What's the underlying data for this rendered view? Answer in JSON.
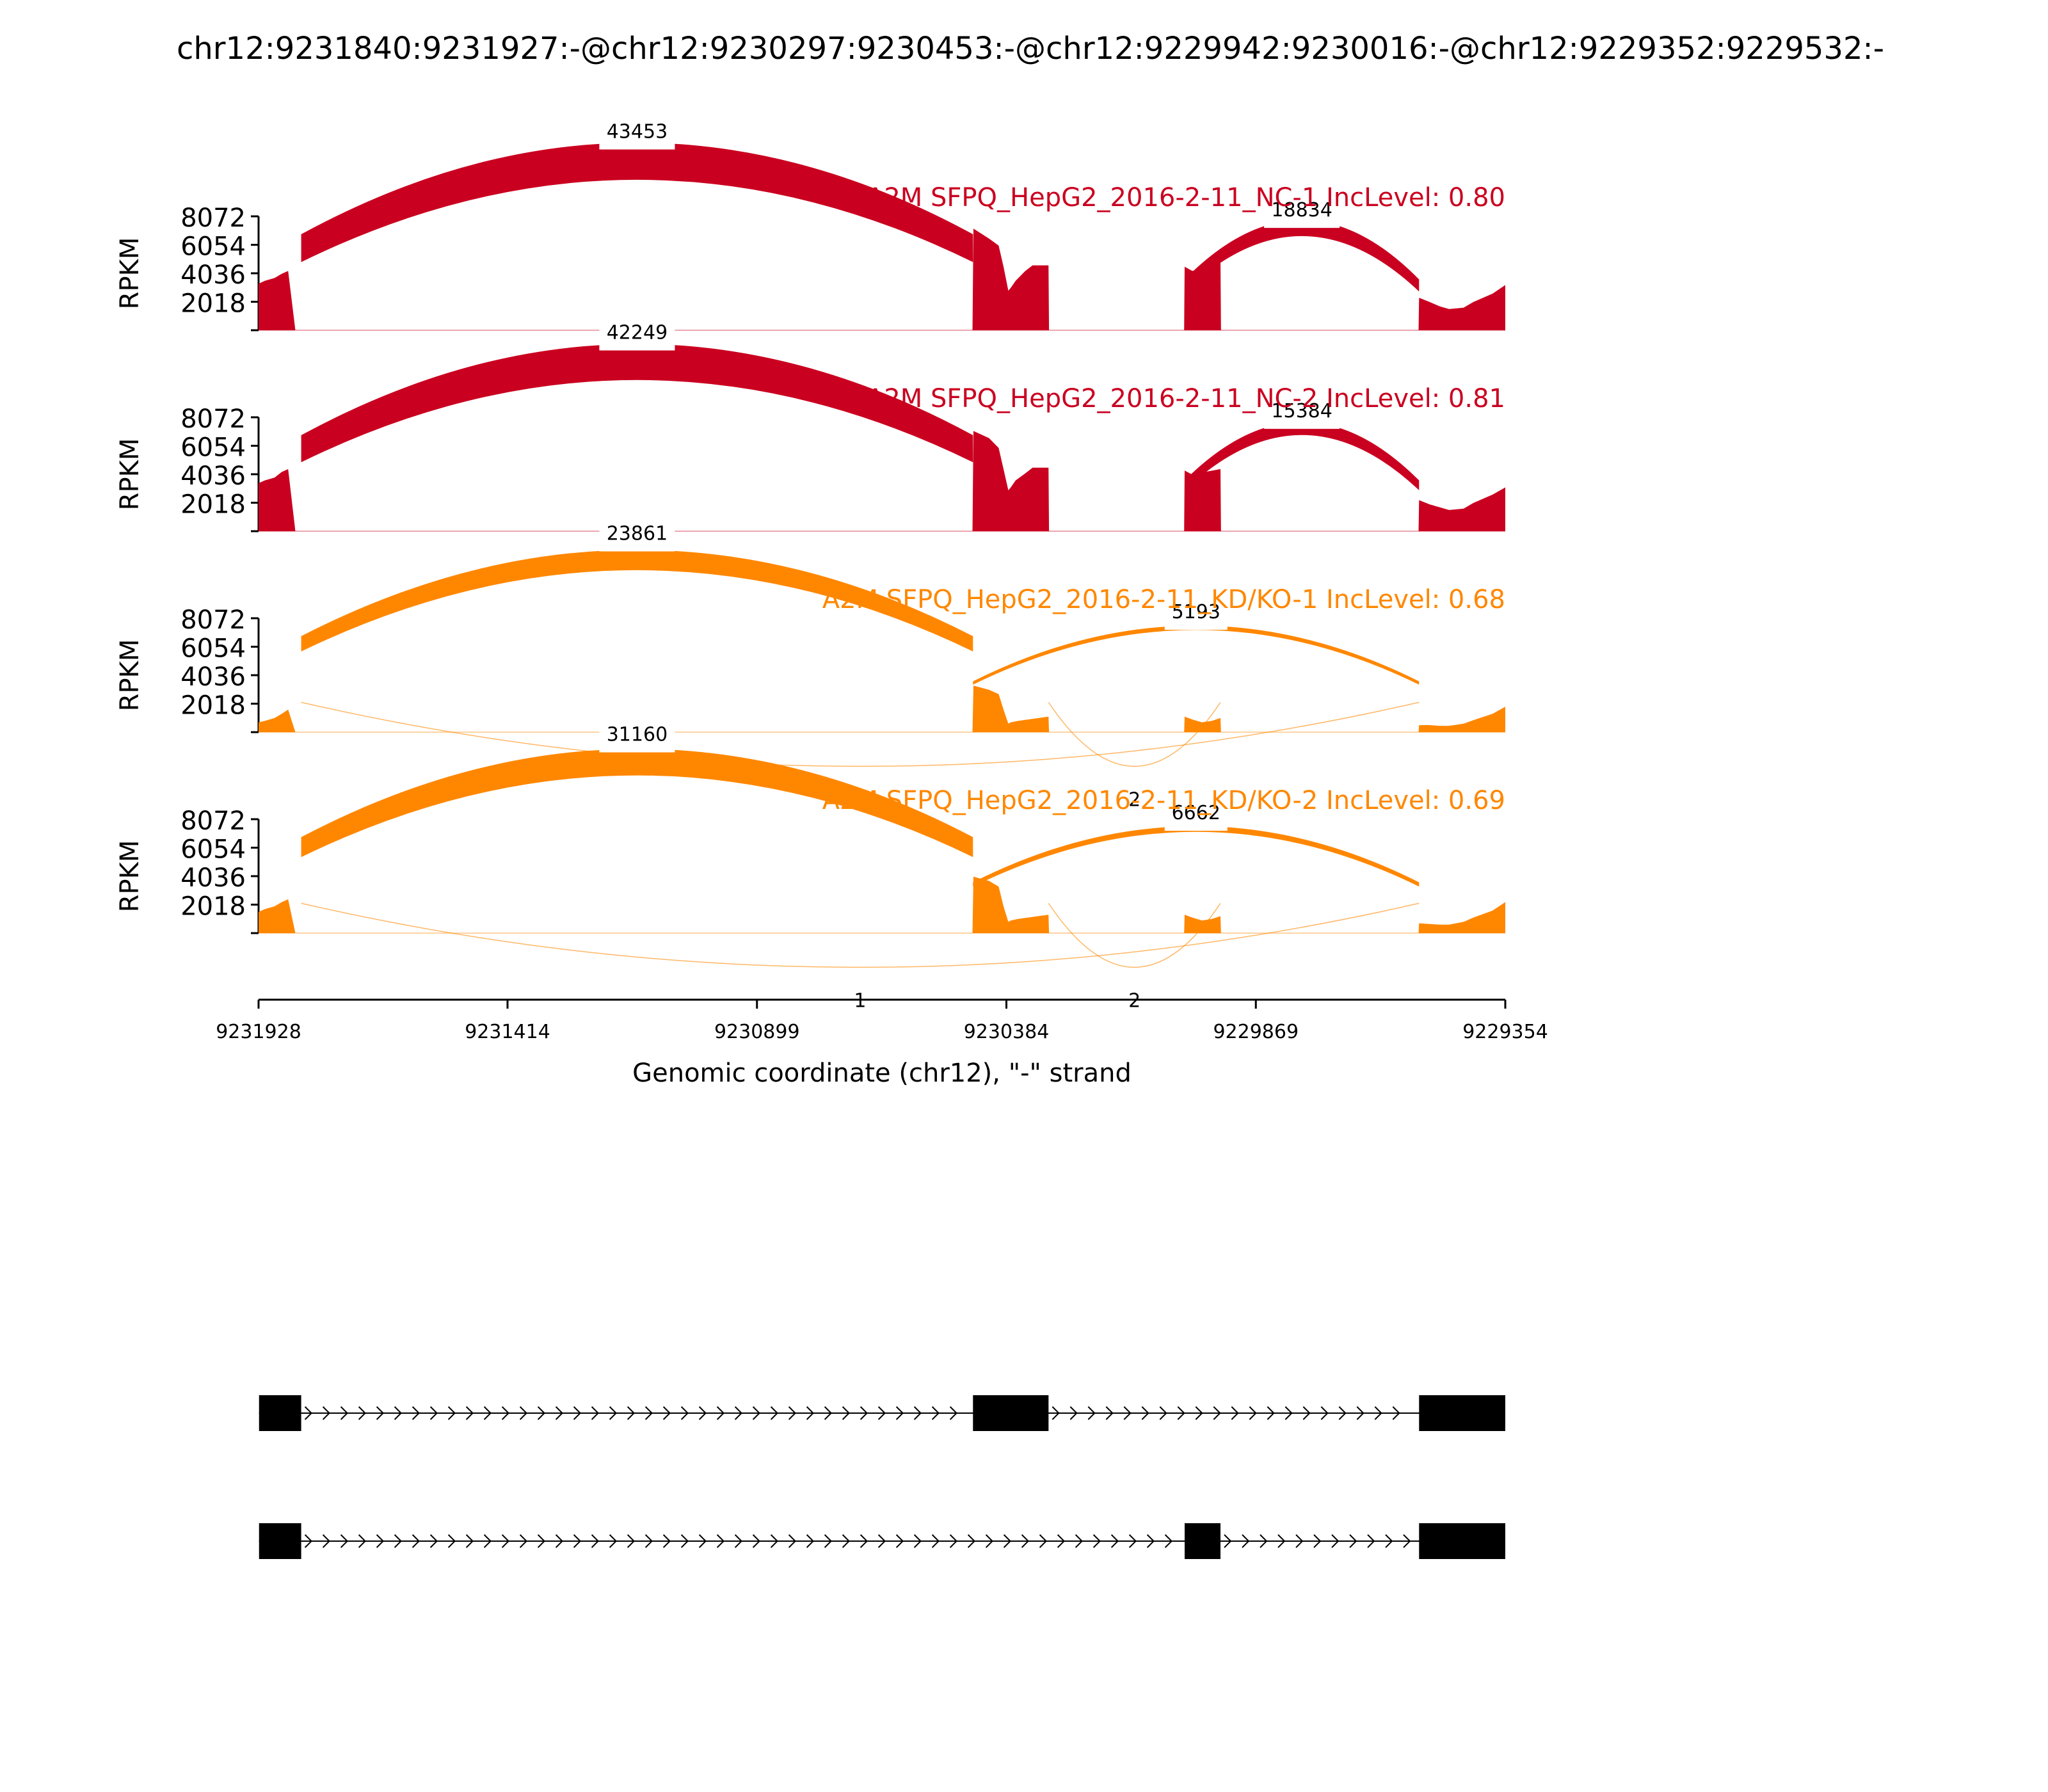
{
  "chart_data": {
    "type": "sashimi",
    "title": "chr12:9231840:9231927:-@chr12:9230297:9230453:-@chr12:9229942:9230016:-@chr12:9229352:9229532:-",
    "xlabel": "Genomic coordinate (chr12), \"-\" strand",
    "ylabel": "RPKM",
    "xlim": [
      9231928,
      9229354
    ],
    "x_ticks": [
      "9231928",
      "9231414",
      "9230899",
      "9230384",
      "9229869",
      "9229354"
    ],
    "x_tick_values": [
      9231928,
      9231414,
      9230899,
      9230384,
      9229869,
      9229354
    ],
    "ylim": [
      0,
      8072
    ],
    "y_ticks": [
      "8072",
      "6054",
      "4036",
      "2018"
    ],
    "y_tick_values": [
      8072,
      6054,
      4036,
      2018
    ],
    "tracks": [
      {
        "label": "A2M SFPQ_HepG2_2016-2-11_NC-1 IncLevel: 0.80",
        "color": "#ca0020",
        "coverage": [
          [
            9231928,
            3300
          ],
          [
            9231915,
            3500
          ],
          [
            9231895,
            3700
          ],
          [
            9231880,
            4000
          ],
          [
            9231867,
            4200
          ],
          [
            9231852,
            0
          ],
          [
            9230454,
            0
          ],
          [
            9230452,
            7200
          ],
          [
            9230420,
            6500
          ],
          [
            9230400,
            6000
          ],
          [
            9230390,
            4500
          ],
          [
            9230380,
            2800
          ],
          [
            9230375,
            3000
          ],
          [
            9230365,
            3500
          ],
          [
            9230345,
            4200
          ],
          [
            9230330,
            4600
          ],
          [
            9230297,
            4600
          ],
          [
            9230296,
            0
          ],
          [
            9230017,
            0
          ],
          [
            9230016,
            4500
          ],
          [
            9230000,
            4200
          ],
          [
            9229990,
            4300
          ],
          [
            9229942,
            4900
          ],
          [
            9229941,
            0
          ],
          [
            9229533,
            0
          ],
          [
            9229532,
            2300
          ],
          [
            9229510,
            2000
          ],
          [
            9229490,
            1700
          ],
          [
            9229470,
            1500
          ],
          [
            9229440,
            1600
          ],
          [
            9229420,
            2000
          ],
          [
            9229380,
            2600
          ],
          [
            9229354,
            3200
          ]
        ],
        "junctions": [
          {
            "from": 9231840,
            "to": 9230453,
            "count": "43453",
            "reads": 43453,
            "side": "top"
          },
          {
            "from": 9230016,
            "to": 9229532,
            "count": "18834",
            "reads": 18834,
            "side": "top"
          }
        ]
      },
      {
        "label": "A2M SFPQ_HepG2_2016-2-11_NC-2 IncLevel: 0.81",
        "color": "#ca0020",
        "coverage": [
          [
            9231928,
            3400
          ],
          [
            9231915,
            3600
          ],
          [
            9231895,
            3800
          ],
          [
            9231880,
            4200
          ],
          [
            9231867,
            4400
          ],
          [
            9231852,
            0
          ],
          [
            9230454,
            0
          ],
          [
            9230452,
            7100
          ],
          [
            9230420,
            6600
          ],
          [
            9230400,
            5900
          ],
          [
            9230390,
            4400
          ],
          [
            9230380,
            2900
          ],
          [
            9230375,
            3100
          ],
          [
            9230365,
            3600
          ],
          [
            9230345,
            4100
          ],
          [
            9230330,
            4500
          ],
          [
            9230297,
            4500
          ],
          [
            9230296,
            0
          ],
          [
            9230017,
            0
          ],
          [
            9230016,
            4300
          ],
          [
            9230000,
            4000
          ],
          [
            9229990,
            4100
          ],
          [
            9229942,
            4400
          ],
          [
            9229941,
            0
          ],
          [
            9229533,
            0
          ],
          [
            9229532,
            2200
          ],
          [
            9229510,
            1900
          ],
          [
            9229490,
            1700
          ],
          [
            9229470,
            1500
          ],
          [
            9229440,
            1600
          ],
          [
            9229420,
            2000
          ],
          [
            9229380,
            2600
          ],
          [
            9229354,
            3100
          ]
        ],
        "junctions": [
          {
            "from": 9231840,
            "to": 9230453,
            "count": "42249",
            "reads": 42249,
            "side": "top"
          },
          {
            "from": 9230016,
            "to": 9229532,
            "count": "15384",
            "reads": 15384,
            "side": "top"
          }
        ]
      },
      {
        "label": "A2M SFPQ_HepG2_2016-2-11_KD/KO-1 IncLevel: 0.68",
        "color": "#ff8700",
        "coverage": [
          [
            9231928,
            700
          ],
          [
            9231915,
            800
          ],
          [
            9231895,
            1000
          ],
          [
            9231880,
            1300
          ],
          [
            9231867,
            1600
          ],
          [
            9231852,
            0
          ],
          [
            9230454,
            0
          ],
          [
            9230452,
            3300
          ],
          [
            9230420,
            3000
          ],
          [
            9230400,
            2700
          ],
          [
            9230390,
            1600
          ],
          [
            9230380,
            600
          ],
          [
            9230375,
            700
          ],
          [
            9230360,
            800
          ],
          [
            9230340,
            900
          ],
          [
            9230297,
            1100
          ],
          [
            9230296,
            0
          ],
          [
            9230017,
            0
          ],
          [
            9230016,
            1100
          ],
          [
            9230000,
            900
          ],
          [
            9229980,
            700
          ],
          [
            9229960,
            800
          ],
          [
            9229942,
            1000
          ],
          [
            9229941,
            0
          ],
          [
            9229533,
            0
          ],
          [
            9229532,
            500
          ],
          [
            9229510,
            500
          ],
          [
            9229490,
            450
          ],
          [
            9229470,
            450
          ],
          [
            9229440,
            600
          ],
          [
            9229420,
            850
          ],
          [
            9229380,
            1300
          ],
          [
            9229354,
            1800
          ]
        ],
        "junctions": [
          {
            "from": 9231840,
            "to": 9230453,
            "count": "23861",
            "reads": 23861,
            "side": "top"
          },
          {
            "from": 9231840,
            "to": 9229532,
            "count": "2",
            "reads": 2,
            "side": "bottom"
          },
          {
            "from": 9230297,
            "to": 9229942,
            "count": "2",
            "reads": 2,
            "side": "bottom"
          },
          {
            "from": 9230453,
            "to": 9229532,
            "count": "5193",
            "reads": 5193,
            "side": "top"
          }
        ]
      },
      {
        "label": "A2M SFPQ_HepG2_2016-2-11_KD/KO-2 IncLevel: 0.69",
        "color": "#ff8700",
        "coverage": [
          [
            9231928,
            1500
          ],
          [
            9231915,
            1700
          ],
          [
            9231895,
            1900
          ],
          [
            9231880,
            2200
          ],
          [
            9231867,
            2400
          ],
          [
            9231852,
            0
          ],
          [
            9230454,
            0
          ],
          [
            9230452,
            4000
          ],
          [
            9230420,
            3700
          ],
          [
            9230400,
            3300
          ],
          [
            9230390,
            1900
          ],
          [
            9230380,
            800
          ],
          [
            9230375,
            900
          ],
          [
            9230360,
            1000
          ],
          [
            9230340,
            1100
          ],
          [
            9230297,
            1300
          ],
          [
            9230296,
            0
          ],
          [
            9230017,
            0
          ],
          [
            9230016,
            1300
          ],
          [
            9230000,
            1100
          ],
          [
            9229980,
            900
          ],
          [
            9229960,
            1000
          ],
          [
            9229942,
            1200
          ],
          [
            9229941,
            0
          ],
          [
            9229533,
            0
          ],
          [
            9229532,
            700
          ],
          [
            9229510,
            650
          ],
          [
            9229490,
            600
          ],
          [
            9229470,
            600
          ],
          [
            9229440,
            800
          ],
          [
            9229420,
            1100
          ],
          [
            9229380,
            1600
          ],
          [
            9229354,
            2200
          ]
        ],
        "junctions": [
          {
            "from": 9231840,
            "to": 9230453,
            "count": "31160",
            "reads": 31160,
            "side": "top"
          },
          {
            "from": 9231840,
            "to": 9229532,
            "count": "1",
            "reads": 1,
            "side": "bottom"
          },
          {
            "from": 9230297,
            "to": 9229942,
            "count": "2",
            "reads": 2,
            "side": "bottom"
          },
          {
            "from": 9230453,
            "to": 9229532,
            "count": "6662",
            "reads": 6662,
            "side": "top"
          }
        ]
      }
    ],
    "isoforms": [
      {
        "exons": [
          [
            9231927,
            9231840
          ],
          [
            9230453,
            9230297
          ],
          [
            9229532,
            9229354
          ]
        ]
      },
      {
        "exons": [
          [
            9231927,
            9231840
          ],
          [
            9230016,
            9229942
          ],
          [
            9229532,
            9229354
          ]
        ]
      }
    ],
    "grid": false,
    "legend": "none"
  }
}
